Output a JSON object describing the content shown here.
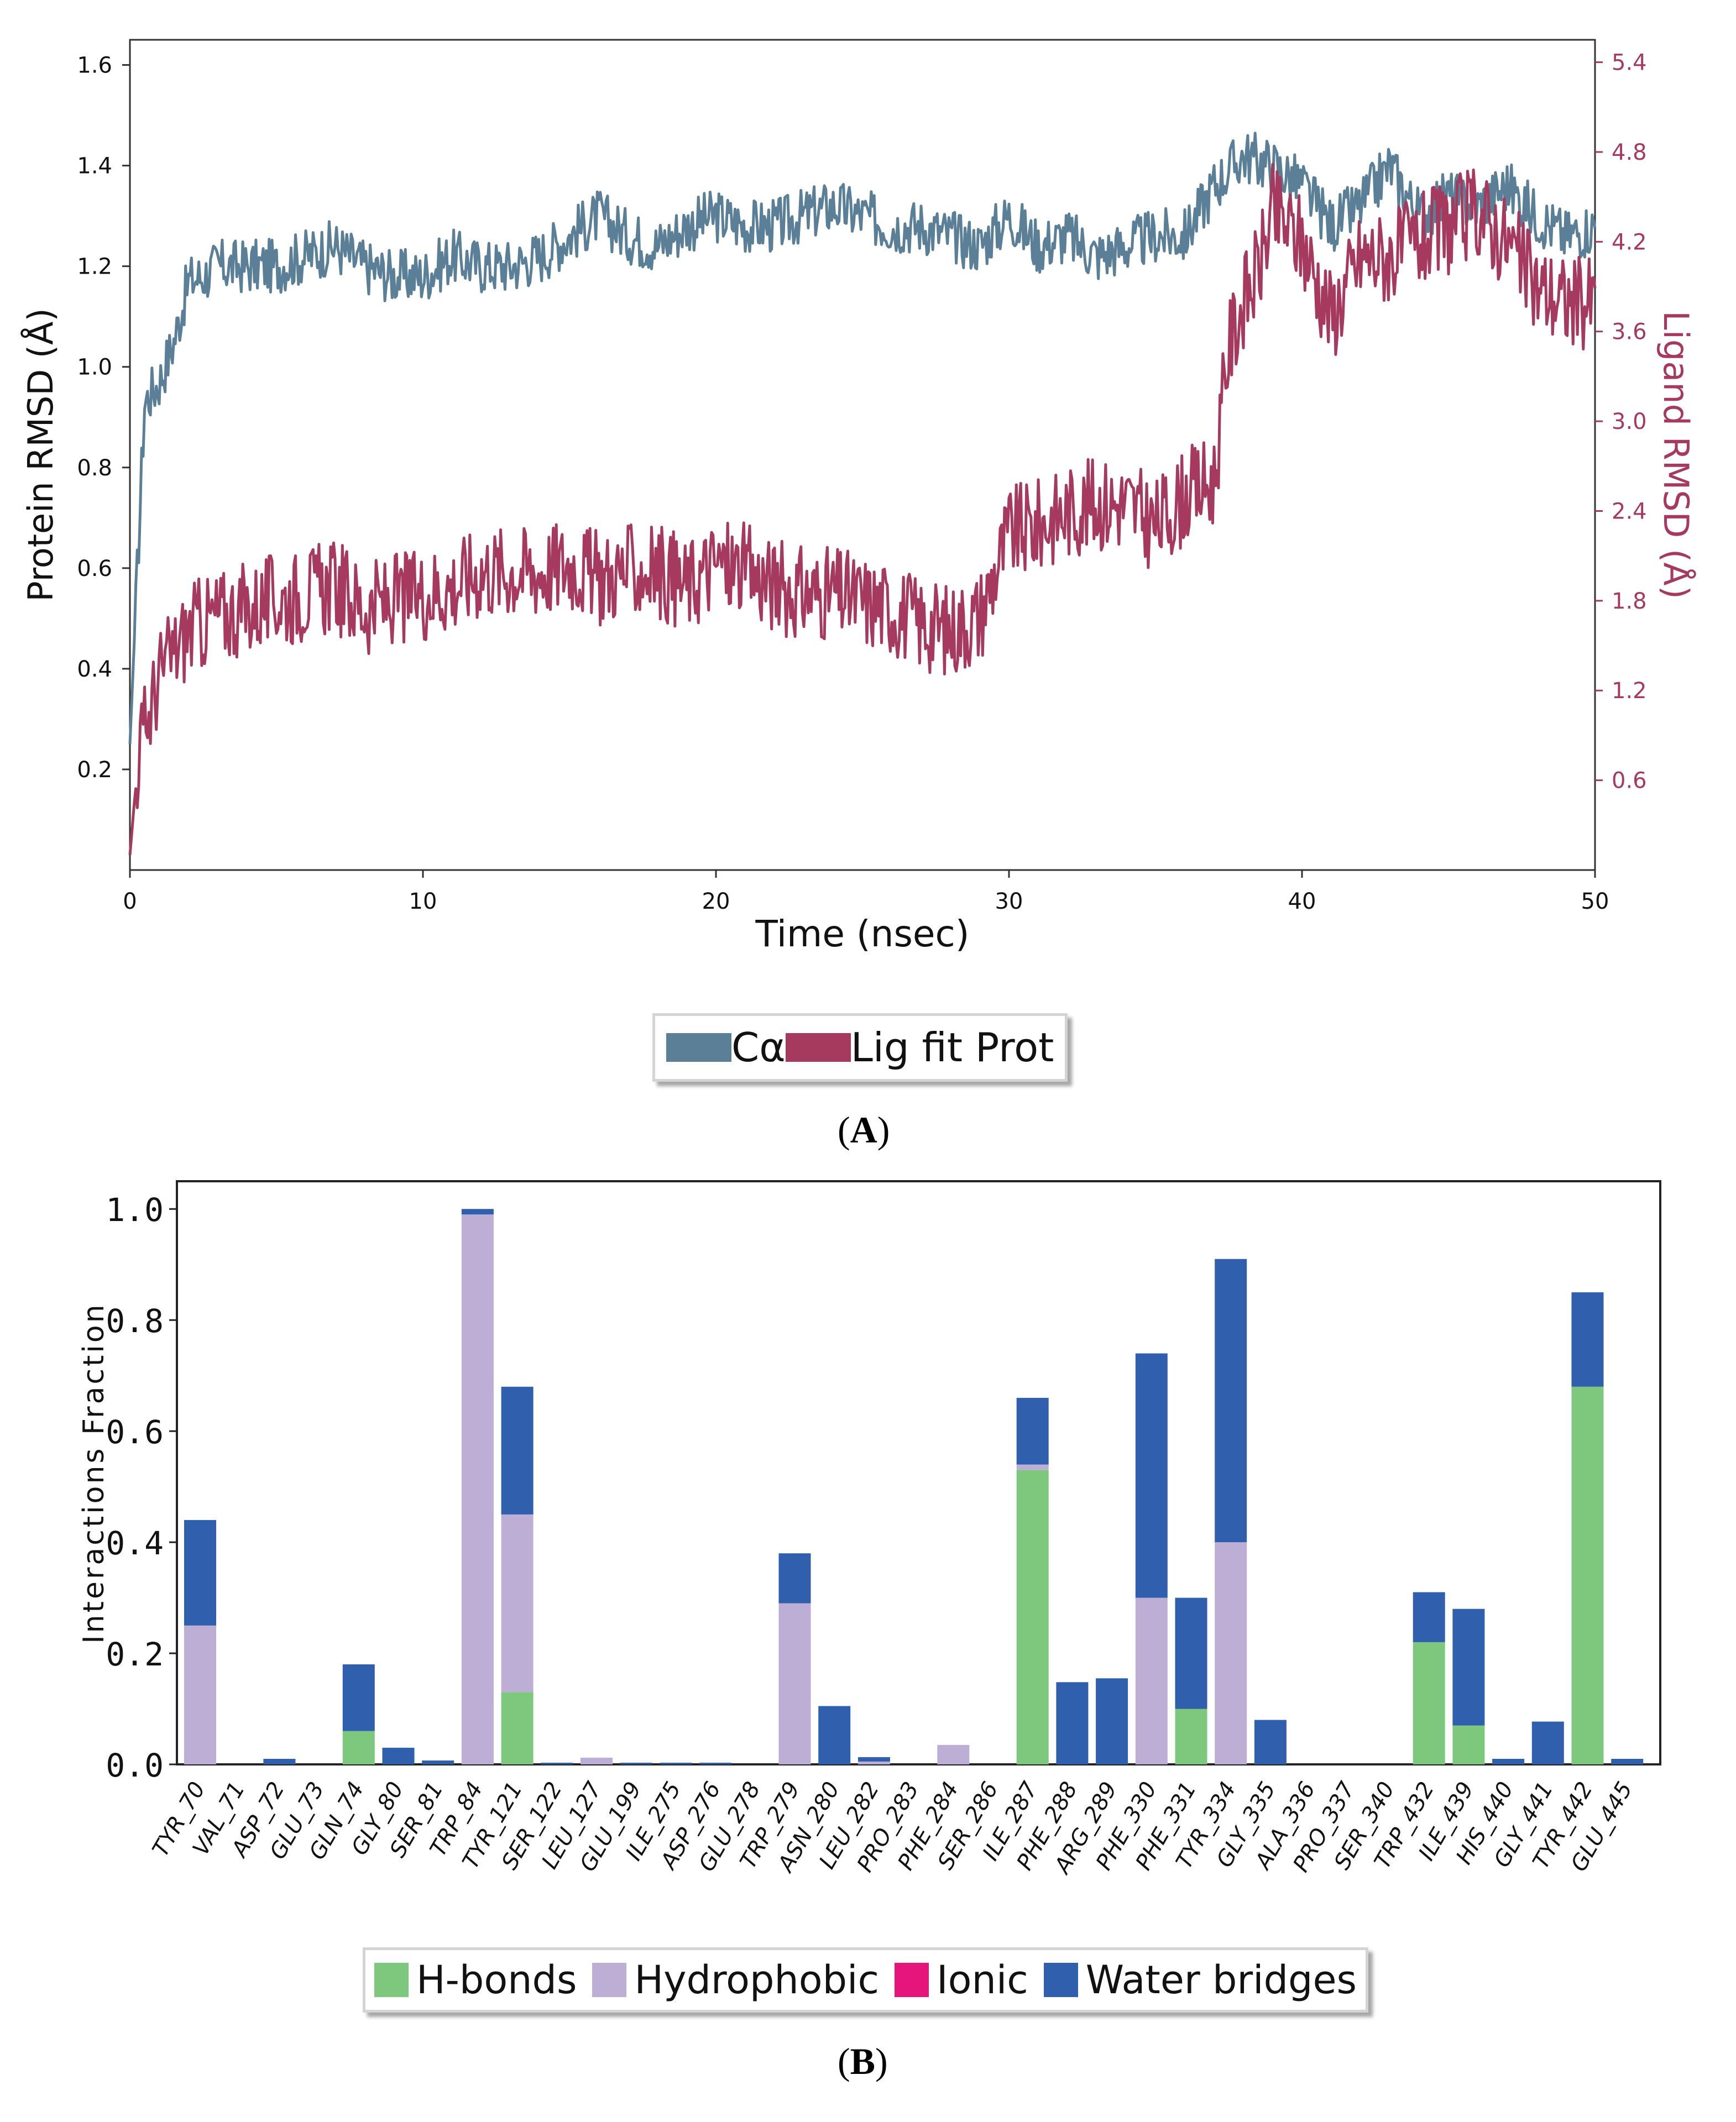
{
  "panelA": {
    "label_open": "(",
    "label_letter": "A",
    "label_close": ")",
    "xlabel": "Time (nsec)",
    "ylabel_left": "Protein RMSD (Å)",
    "ylabel_right": "Ligand RMSD (Å)",
    "legend": {
      "ca": "Cα",
      "lig": "Lig fit Prot"
    }
  },
  "panelB": {
    "label_open": "(",
    "label_letter": "B",
    "label_close": ")",
    "ylabel": "Interactions Fraction",
    "legend": {
      "hbonds": "H-bonds",
      "hydrophobic": "Hydrophobic",
      "ionic": "Ionic",
      "water": "Water bridges"
    }
  },
  "colors": {
    "ca": "#5a7f96",
    "lig": "#a63a5e",
    "hbonds": "#7ec87e",
    "hydrophobic": "#bcaed4",
    "ionic": "#e5157c",
    "water": "#2f5fad"
  },
  "chart_data": [
    {
      "type": "line",
      "title": "",
      "xlabel": "Time (nsec)",
      "ylabel": "Protein RMSD (Å)",
      "ylabel_right": "Ligand RMSD (Å)",
      "xlim": [
        0,
        50
      ],
      "ylim": [
        0,
        1.65
      ],
      "ylim_right": [
        0,
        5.55
      ],
      "xticks": [
        0,
        10,
        20,
        30,
        40,
        50
      ],
      "yticks": [
        "0.2",
        "0.4",
        "0.6",
        "0.8",
        "1.0",
        "1.2",
        "1.4",
        "1.6"
      ],
      "yticks_right": [
        "0.6",
        "1.2",
        "1.8",
        "2.4",
        "3.0",
        "3.6",
        "4.2",
        "4.8",
        "5.4"
      ],
      "legend": [
        "Cα",
        "Lig fit Prot"
      ],
      "series": [
        {
          "name": "Cα",
          "axis": "left",
          "x": [
            0,
            0.5,
            1,
            1.5,
            2,
            2.5,
            3,
            4,
            5,
            6,
            7,
            8,
            9,
            10,
            11,
            12,
            13,
            14,
            15,
            16,
            17,
            18,
            19,
            20,
            21,
            22,
            23,
            24,
            25,
            26,
            27,
            28,
            29,
            30,
            31,
            32,
            33,
            34,
            35,
            36,
            37,
            38,
            39,
            40,
            41,
            42,
            43,
            44,
            45,
            46,
            47,
            48,
            49,
            50
          ],
          "values": [
            0.25,
            0.93,
            0.97,
            1.05,
            1.17,
            1.18,
            1.2,
            1.2,
            1.2,
            1.22,
            1.24,
            1.2,
            1.18,
            1.18,
            1.22,
            1.2,
            1.2,
            1.22,
            1.26,
            1.3,
            1.26,
            1.24,
            1.28,
            1.3,
            1.28,
            1.28,
            1.3,
            1.32,
            1.3,
            1.28,
            1.28,
            1.26,
            1.24,
            1.3,
            1.24,
            1.26,
            1.22,
            1.24,
            1.26,
            1.26,
            1.36,
            1.42,
            1.4,
            1.36,
            1.28,
            1.32,
            1.4,
            1.3,
            1.34,
            1.32,
            1.36,
            1.3,
            1.26,
            1.28
          ]
        },
        {
          "name": "Lig fit Prot",
          "axis": "right",
          "x": [
            0,
            0.3,
            0.6,
            1,
            1.5,
            2,
            3,
            4,
            5,
            6,
            7,
            8,
            9,
            10,
            11,
            12,
            13,
            14,
            15,
            16,
            17,
            18,
            19,
            20,
            21,
            22,
            23,
            24,
            25,
            26,
            27,
            28,
            29,
            30,
            31,
            32,
            33,
            34,
            35,
            36,
            37,
            37.5,
            38,
            38.5,
            39,
            40,
            41,
            42,
            43,
            44,
            45,
            46,
            47,
            48,
            49,
            50
          ],
          "values": [
            0.1,
            0.8,
            1.0,
            1.3,
            1.45,
            1.6,
            1.7,
            1.75,
            1.8,
            1.85,
            1.9,
            1.75,
            1.8,
            1.85,
            1.9,
            2.0,
            2.0,
            2.0,
            2.05,
            1.95,
            2.0,
            2.0,
            1.9,
            2.05,
            2.0,
            1.9,
            1.85,
            1.85,
            1.8,
            1.75,
            1.65,
            1.6,
            1.7,
            2.25,
            2.3,
            2.4,
            2.45,
            2.45,
            2.3,
            2.5,
            2.6,
            3.5,
            3.8,
            4.0,
            4.4,
            4.2,
            3.7,
            4.1,
            4.1,
            4.2,
            4.3,
            4.4,
            4.2,
            3.9,
            3.8,
            3.8
          ]
        }
      ]
    },
    {
      "type": "bar",
      "stacked": true,
      "title": "",
      "xlabel": "",
      "ylabel": "Interactions Fraction",
      "ylim": [
        0,
        1.05
      ],
      "yticks": [
        "0.0",
        "0.2",
        "0.4",
        "0.6",
        "0.8",
        "1.0"
      ],
      "legend": [
        "H-bonds",
        "Hydrophobic",
        "Ionic",
        "Water bridges"
      ],
      "categories": [
        "TYR_70",
        "VAL_71",
        "ASP_72",
        "GLU_73",
        "GLN_74",
        "GLY_80",
        "SER_81",
        "TRP_84",
        "TYR_121",
        "SER_122",
        "LEU_127",
        "GLU_199",
        "ILE_275",
        "ASP_276",
        "GLU_278",
        "TRP_279",
        "ASN_280",
        "LEU_282",
        "PRO_283",
        "PHE_284",
        "SER_286",
        "ILE_287",
        "PHE_288",
        "ARG_289",
        "PHE_330",
        "PHE_331",
        "TYR_334",
        "GLY_335",
        "ALA_336",
        "PRO_337",
        "SER_340",
        "TRP_432",
        "ILE_439",
        "HIS_440",
        "GLY_441",
        "TYR_442",
        "GLU_445"
      ],
      "series": [
        {
          "name": "H-bonds",
          "values": [
            0,
            0,
            0,
            0,
            0.06,
            0,
            0,
            0,
            0.13,
            0,
            0,
            0,
            0,
            0,
            0,
            0,
            0,
            0,
            0,
            0,
            0,
            0.53,
            0,
            0,
            0,
            0.1,
            0,
            0,
            0,
            0,
            0,
            0.22,
            0.07,
            0,
            0,
            0.68,
            0
          ]
        },
        {
          "name": "Hydrophobic",
          "values": [
            0.25,
            0,
            0,
            0,
            0,
            0,
            0,
            0.99,
            0.32,
            0,
            0.012,
            0,
            0,
            0,
            0,
            0.29,
            0,
            0.005,
            0,
            0.035,
            0,
            0.01,
            0,
            0,
            0.3,
            0,
            0.4,
            0,
            0,
            0,
            0,
            0,
            0,
            0,
            0,
            0,
            0
          ]
        },
        {
          "name": "Ionic",
          "values": [
            0,
            0,
            0,
            0,
            0,
            0,
            0,
            0,
            0,
            0,
            0,
            0,
            0,
            0,
            0,
            0,
            0,
            0,
            0,
            0,
            0,
            0,
            0,
            0,
            0,
            0,
            0,
            0,
            0,
            0,
            0,
            0,
            0,
            0,
            0,
            0,
            0
          ]
        },
        {
          "name": "Water bridges",
          "values": [
            0.19,
            0,
            0.01,
            0,
            0.12,
            0.03,
            0.007,
            0.01,
            0.23,
            0.003,
            0,
            0.003,
            0.003,
            0.003,
            0,
            0.09,
            0.105,
            0.008,
            0,
            0,
            0,
            0.12,
            0.148,
            0.155,
            0.44,
            0.2,
            0.51,
            0.08,
            0,
            0,
            0,
            0.09,
            0.21,
            0.01,
            0.077,
            0.17,
            0.01
          ]
        }
      ]
    }
  ]
}
